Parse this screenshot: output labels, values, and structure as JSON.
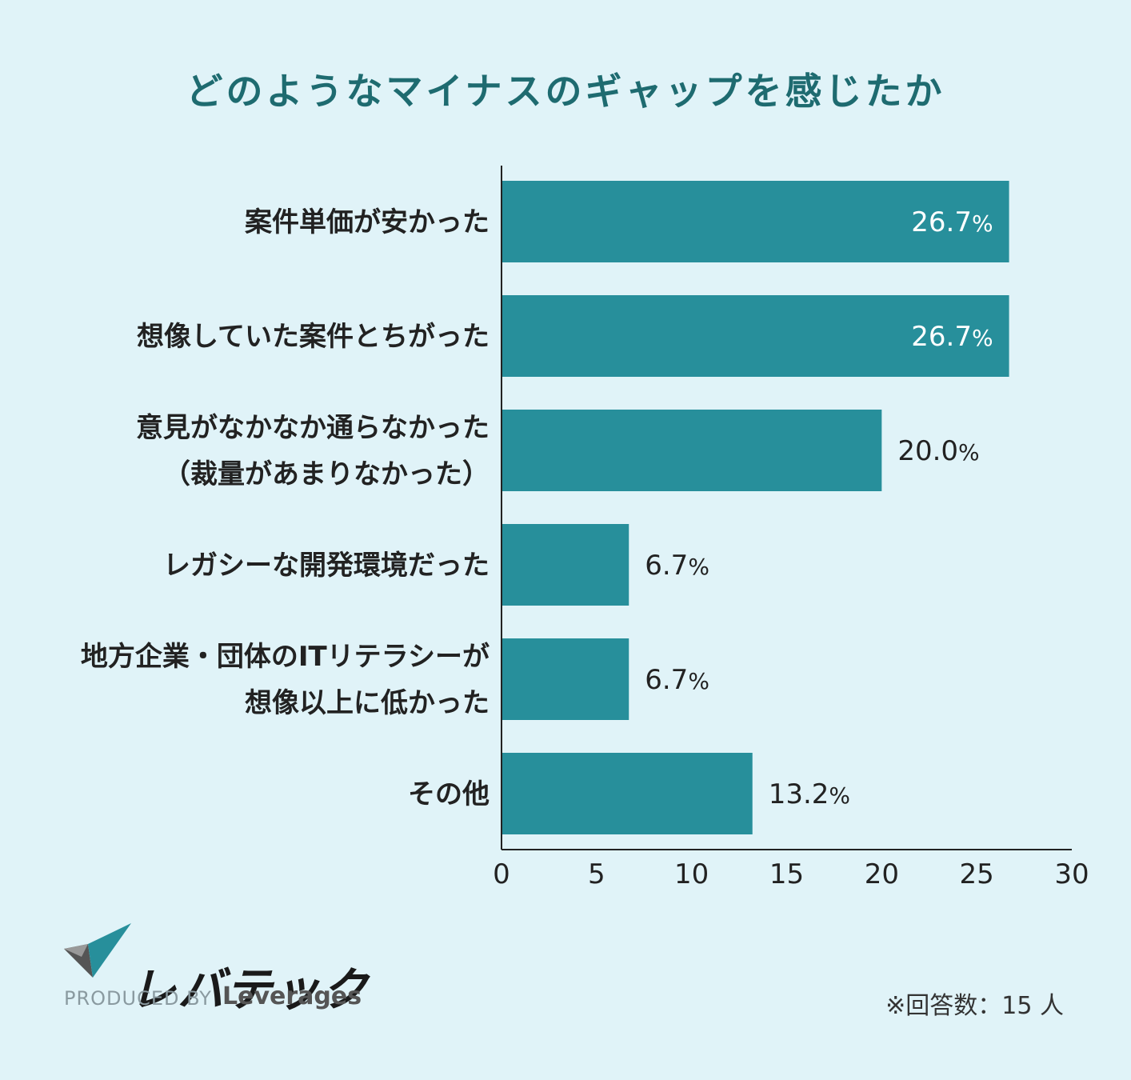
{
  "chart_data": {
    "type": "bar",
    "orientation": "horizontal",
    "title": "どのようなマイナスのギャップを感じたか",
    "categories": [
      [
        "案件単価が安かった"
      ],
      [
        "想像していた案件とちがった"
      ],
      [
        "意見がなかなか通らなかった",
        "（裁量があまりなかった）"
      ],
      [
        "レガシーな開発環境だった"
      ],
      [
        "地方企業・団体のITリテラシーが",
        "想像以上に低かった"
      ],
      [
        "その他"
      ]
    ],
    "values": [
      26.7,
      26.7,
      20.0,
      6.7,
      6.7,
      13.2
    ],
    "value_labels": [
      "26.7",
      "26.7",
      "20.0",
      "6.7",
      "6.7",
      "13.2"
    ],
    "value_unit": "%",
    "xlim": [
      0,
      30
    ],
    "xticks": [
      0,
      5,
      10,
      15,
      20,
      25,
      30
    ],
    "grid": false,
    "legend": "none"
  },
  "colors": {
    "bar": "#278f9b",
    "background": "#e0f3f8",
    "title": "#1e6b70",
    "label_inside": "#ffffff",
    "label_outside": "#222222"
  },
  "logo": {
    "wordmark": "レバテック",
    "produced_by": "PRODUCED BY",
    "brand": "Leverages"
  },
  "note": "※回答数：15 人"
}
